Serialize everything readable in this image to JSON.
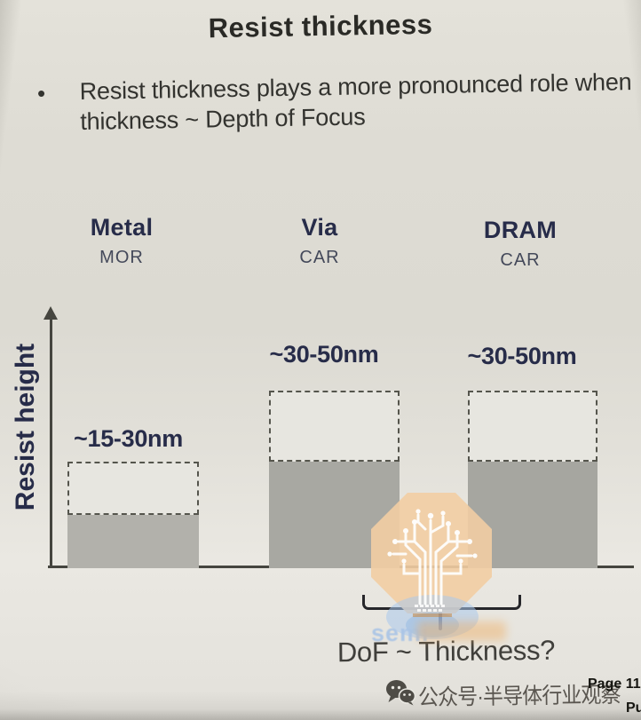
{
  "slide": {
    "title": "Resist thickness",
    "bullet_marker": "•",
    "bullet_text": "Resist thickness plays a more pronounced role when thickness ~ Depth of Focus"
  },
  "chart_data": {
    "type": "bar",
    "title": "Resist thickness",
    "ylabel": "Resist height",
    "xlabel": "",
    "categories": [
      "Metal",
      "Via",
      "DRAM"
    ],
    "category_subtitles": [
      "MOR",
      "CAR",
      "CAR"
    ],
    "bar_value_labels": [
      "~15-30nm",
      "~30-50nm",
      "~30-50nm"
    ],
    "series": [
      {
        "name": "resist height lower bound (solid fill)",
        "values": [
          15,
          30,
          30
        ]
      },
      {
        "name": "resist height upper bound (dashed range)",
        "values": [
          30,
          50,
          50
        ]
      }
    ],
    "units": "nm",
    "axis_style": "y axis with up arrow, no tick labels; plain x baseline",
    "annotation": "DoF ~ Thickness?",
    "annotation_target": "brace between Via and DRAM bars"
  },
  "watermark": {
    "text": "semi",
    "logo": "octagon circuit-tree logo"
  },
  "footer": {
    "account_label": "公众号·半导体行业观察",
    "page_label": "Page 11",
    "page_sub_label": "Pu"
  },
  "colors": {
    "background": "#dedcd4",
    "heading_navy": "#272c49",
    "body_text": "#33332f",
    "axis": "#45453f",
    "bar_solid": "#a8a8a2",
    "bar_range_fill": "#e7e6e0",
    "bar_range_border": "#55554d",
    "bracket": "#26262a",
    "watermark_orange": "#f2cda3",
    "watermark_blue": "#a9c4e6",
    "watermark_orange_text": "#efae62",
    "footer_text": "#5a5650"
  }
}
